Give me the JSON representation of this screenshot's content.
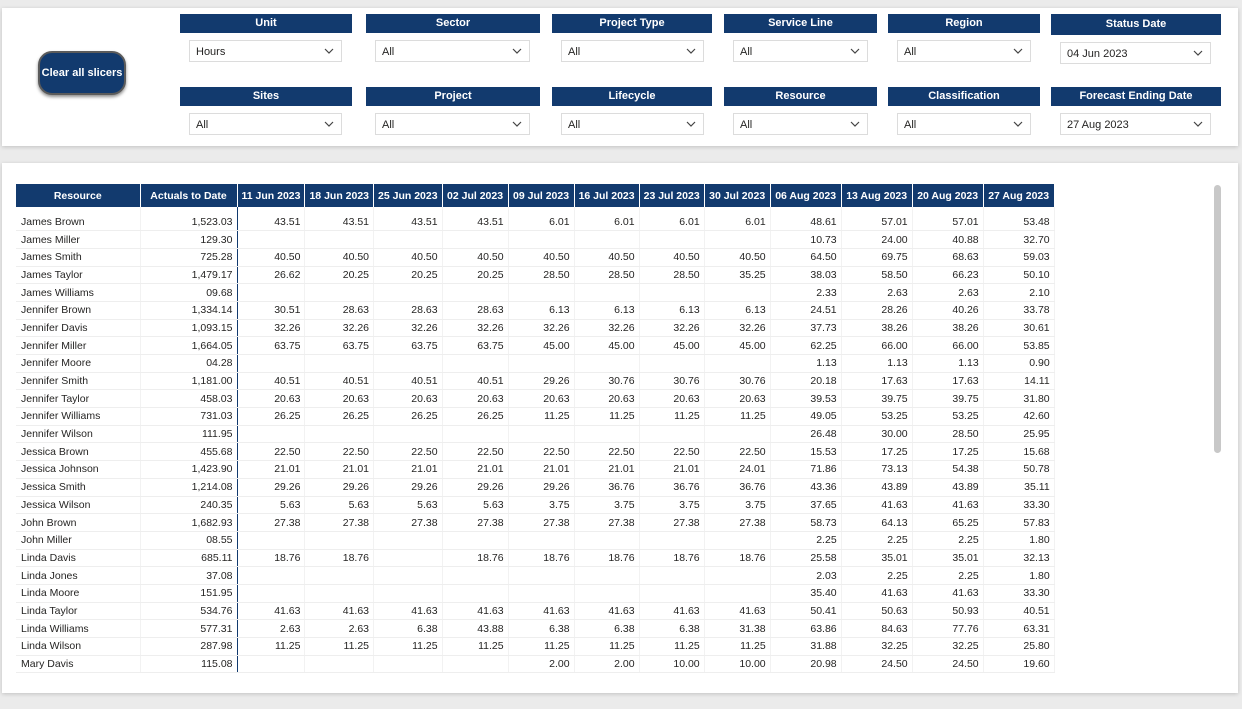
{
  "clear_button": {
    "label": "Clear all slicers"
  },
  "slicers": [
    {
      "id": "unit",
      "header": "Unit",
      "value": "Hours"
    },
    {
      "id": "sector",
      "header": "Sector",
      "value": "All"
    },
    {
      "id": "project-type",
      "header": "Project Type",
      "value": "All"
    },
    {
      "id": "service-line",
      "header": "Service Line",
      "value": "All"
    },
    {
      "id": "region",
      "header": "Region",
      "value": "All"
    },
    {
      "id": "status-date",
      "header": "Status Date",
      "value": "04 Jun 2023"
    },
    {
      "id": "sites",
      "header": "Sites",
      "value": "All"
    },
    {
      "id": "project",
      "header": "Project",
      "value": "All"
    },
    {
      "id": "lifecycle",
      "header": "Lifecycle",
      "value": "All"
    },
    {
      "id": "resource",
      "header": "Resource",
      "value": "All"
    },
    {
      "id": "classification",
      "header": "Classification",
      "value": "All"
    },
    {
      "id": "forecast-ending-date",
      "header": "Forecast Ending Date",
      "value": "27 Aug 2023"
    }
  ],
  "table": {
    "columns": [
      "Resource",
      "Actuals to Date",
      "11 Jun 2023",
      "18 Jun 2023",
      "25 Jun 2023",
      "02 Jul 2023",
      "09 Jul 2023",
      "16 Jul 2023",
      "23 Jul 2023",
      "30 Jul 2023",
      "06 Aug 2023",
      "13 Aug 2023",
      "20 Aug 2023",
      "27 Aug 2023"
    ],
    "rows": [
      [
        "James Brown",
        "1,523.03",
        "43.51",
        "43.51",
        "43.51",
        "43.51",
        "6.01",
        "6.01",
        "6.01",
        "6.01",
        "48.61",
        "57.01",
        "57.01",
        "53.48"
      ],
      [
        "James Miller",
        "129.30",
        "",
        "",
        "",
        "",
        "",
        "",
        "",
        "",
        "10.73",
        "24.00",
        "40.88",
        "32.70"
      ],
      [
        "James Smith",
        "725.28",
        "40.50",
        "40.50",
        "40.50",
        "40.50",
        "40.50",
        "40.50",
        "40.50",
        "40.50",
        "64.50",
        "69.75",
        "68.63",
        "59.03"
      ],
      [
        "James Taylor",
        "1,479.17",
        "26.62",
        "20.25",
        "20.25",
        "20.25",
        "28.50",
        "28.50",
        "28.50",
        "35.25",
        "38.03",
        "58.50",
        "66.23",
        "50.10"
      ],
      [
        "James Williams",
        "09.68",
        "",
        "",
        "",
        "",
        "",
        "",
        "",
        "",
        "2.33",
        "2.63",
        "2.63",
        "2.10"
      ],
      [
        "Jennifer Brown",
        "1,334.14",
        "30.51",
        "28.63",
        "28.63",
        "28.63",
        "6.13",
        "6.13",
        "6.13",
        "6.13",
        "24.51",
        "28.26",
        "40.26",
        "33.78"
      ],
      [
        "Jennifer Davis",
        "1,093.15",
        "32.26",
        "32.26",
        "32.26",
        "32.26",
        "32.26",
        "32.26",
        "32.26",
        "32.26",
        "37.73",
        "38.26",
        "38.26",
        "30.61"
      ],
      [
        "Jennifer Miller",
        "1,664.05",
        "63.75",
        "63.75",
        "63.75",
        "63.75",
        "45.00",
        "45.00",
        "45.00",
        "45.00",
        "62.25",
        "66.00",
        "66.00",
        "53.85"
      ],
      [
        "Jennifer Moore",
        "04.28",
        "",
        "",
        "",
        "",
        "",
        "",
        "",
        "",
        "1.13",
        "1.13",
        "1.13",
        "0.90"
      ],
      [
        "Jennifer Smith",
        "1,181.00",
        "40.51",
        "40.51",
        "40.51",
        "40.51",
        "29.26",
        "30.76",
        "30.76",
        "30.76",
        "20.18",
        "17.63",
        "17.63",
        "14.11"
      ],
      [
        "Jennifer Taylor",
        "458.03",
        "20.63",
        "20.63",
        "20.63",
        "20.63",
        "20.63",
        "20.63",
        "20.63",
        "20.63",
        "39.53",
        "39.75",
        "39.75",
        "31.80"
      ],
      [
        "Jennifer Williams",
        "731.03",
        "26.25",
        "26.25",
        "26.25",
        "26.25",
        "11.25",
        "11.25",
        "11.25",
        "11.25",
        "49.05",
        "53.25",
        "53.25",
        "42.60"
      ],
      [
        "Jennifer Wilson",
        "111.95",
        "",
        "",
        "",
        "",
        "",
        "",
        "",
        "",
        "26.48",
        "30.00",
        "28.50",
        "25.95"
      ],
      [
        "Jessica Brown",
        "455.68",
        "22.50",
        "22.50",
        "22.50",
        "22.50",
        "22.50",
        "22.50",
        "22.50",
        "22.50",
        "15.53",
        "17.25",
        "17.25",
        "15.68"
      ],
      [
        "Jessica Johnson",
        "1,423.90",
        "21.01",
        "21.01",
        "21.01",
        "21.01",
        "21.01",
        "21.01",
        "21.01",
        "24.01",
        "71.86",
        "73.13",
        "54.38",
        "50.78"
      ],
      [
        "Jessica Smith",
        "1,214.08",
        "29.26",
        "29.26",
        "29.26",
        "29.26",
        "29.26",
        "36.76",
        "36.76",
        "36.76",
        "43.36",
        "43.89",
        "43.89",
        "35.11"
      ],
      [
        "Jessica Wilson",
        "240.35",
        "5.63",
        "5.63",
        "5.63",
        "5.63",
        "3.75",
        "3.75",
        "3.75",
        "3.75",
        "37.65",
        "41.63",
        "41.63",
        "33.30"
      ],
      [
        "John Brown",
        "1,682.93",
        "27.38",
        "27.38",
        "27.38",
        "27.38",
        "27.38",
        "27.38",
        "27.38",
        "27.38",
        "58.73",
        "64.13",
        "65.25",
        "57.83"
      ],
      [
        "John Miller",
        "08.55",
        "",
        "",
        "",
        "",
        "",
        "",
        "",
        "",
        "2.25",
        "2.25",
        "2.25",
        "1.80"
      ],
      [
        "Linda Davis",
        "685.11",
        "18.76",
        "18.76",
        "",
        "18.76",
        "18.76",
        "18.76",
        "18.76",
        "18.76",
        "25.58",
        "35.01",
        "35.01",
        "32.13"
      ],
      [
        "Linda Jones",
        "37.08",
        "",
        "",
        "",
        "",
        "",
        "",
        "",
        "",
        "2.03",
        "2.25",
        "2.25",
        "1.80"
      ],
      [
        "Linda Moore",
        "151.95",
        "",
        "",
        "",
        "",
        "",
        "",
        "",
        "",
        "35.40",
        "41.63",
        "41.63",
        "33.30"
      ],
      [
        "Linda Taylor",
        "534.76",
        "41.63",
        "41.63",
        "41.63",
        "41.63",
        "41.63",
        "41.63",
        "41.63",
        "41.63",
        "50.41",
        "50.63",
        "50.93",
        "40.51"
      ],
      [
        "Linda Williams",
        "577.31",
        "2.63",
        "2.63",
        "6.38",
        "43.88",
        "6.38",
        "6.38",
        "6.38",
        "31.38",
        "63.86",
        "84.63",
        "77.76",
        "63.31"
      ],
      [
        "Linda Wilson",
        "287.98",
        "11.25",
        "11.25",
        "11.25",
        "11.25",
        "11.25",
        "11.25",
        "11.25",
        "11.25",
        "31.88",
        "32.25",
        "32.25",
        "25.80"
      ],
      [
        "Mary Davis",
        "115.08",
        "",
        "",
        "",
        "",
        "2.00",
        "2.00",
        "10.00",
        "10.00",
        "20.98",
        "24.50",
        "24.50",
        "19.60"
      ]
    ]
  }
}
